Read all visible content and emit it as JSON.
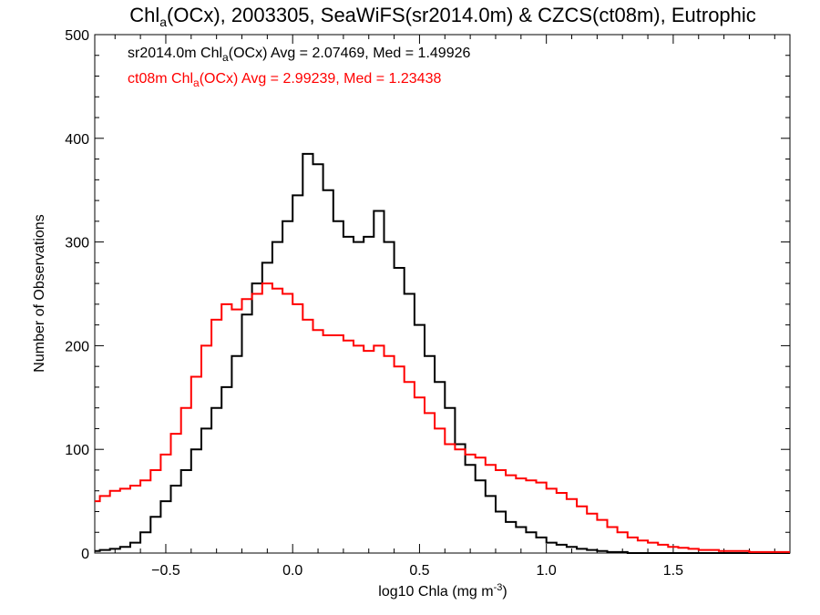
{
  "chart_data": {
    "type": "line",
    "title_prefix": "Chl",
    "title_sub": "a",
    "title_suffix": "(OCx), 2003305, SeaWiFS(sr2014.0m) & CZCS(ct08m), Eutrophic",
    "xlabel_prefix": "log10 Chla (mg m",
    "xlabel_sup": "-3",
    "xlabel_suffix": ")",
    "ylabel": "Number of Observations",
    "xlim": [
      -0.78,
      1.96
    ],
    "ylim": [
      0,
      500
    ],
    "x_ticks": [
      -0.5,
      0.0,
      0.5,
      1.0,
      1.5
    ],
    "x_tick_labels": [
      "−0.5",
      "0.0",
      "0.5",
      "1.0",
      "1.5"
    ],
    "y_ticks": [
      0,
      100,
      200,
      300,
      400,
      500
    ],
    "y_tick_labels": [
      "0",
      "100",
      "200",
      "300",
      "400",
      "500"
    ],
    "grid": false,
    "legend_placement": "top-left",
    "series": [
      {
        "legend_prefix": "sr2014.0m Chl",
        "legend_sub": "a",
        "legend_suffix": "(OCx) Avg = 2.07469, Med = 1.49926",
        "color": "#000000",
        "x": [
          -0.78,
          -0.74,
          -0.7,
          -0.66,
          -0.62,
          -0.58,
          -0.54,
          -0.5,
          -0.46,
          -0.42,
          -0.38,
          -0.34,
          -0.3,
          -0.26,
          -0.22,
          -0.18,
          -0.14,
          -0.1,
          -0.06,
          -0.02,
          0.02,
          0.06,
          0.1,
          0.14,
          0.18,
          0.22,
          0.26,
          0.3,
          0.34,
          0.38,
          0.42,
          0.46,
          0.5,
          0.54,
          0.58,
          0.62,
          0.66,
          0.7,
          0.74,
          0.78,
          0.82,
          0.86,
          0.9,
          0.94,
          0.98,
          1.02,
          1.06,
          1.1,
          1.14,
          1.18,
          1.22,
          1.26,
          1.3,
          1.34,
          1.38,
          1.42,
          1.46,
          1.5,
          1.54,
          1.58,
          1.62,
          1.66,
          1.7,
          1.74,
          1.78,
          1.82,
          1.86,
          1.9,
          1.94
        ],
        "values": [
          2,
          3,
          4,
          6,
          10,
          20,
          35,
          50,
          65,
          80,
          100,
          120,
          140,
          160,
          190,
          230,
          260,
          280,
          300,
          320,
          345,
          385,
          375,
          350,
          320,
          305,
          300,
          305,
          330,
          300,
          275,
          250,
          220,
          190,
          165,
          140,
          105,
          85,
          70,
          55,
          40,
          30,
          25,
          20,
          15,
          10,
          8,
          6,
          4,
          3,
          2,
          1,
          1,
          0,
          0,
          0,
          0,
          0,
          0,
          0,
          0,
          0,
          0,
          0,
          0,
          0,
          0,
          0,
          0
        ]
      },
      {
        "legend_prefix": "ct08m Chl",
        "legend_sub": "a",
        "legend_suffix": "(OCx) Avg = 2.99239, Med = 1.23438",
        "color": "#ff0000",
        "x": [
          -0.78,
          -0.74,
          -0.7,
          -0.66,
          -0.62,
          -0.58,
          -0.54,
          -0.5,
          -0.46,
          -0.42,
          -0.38,
          -0.34,
          -0.3,
          -0.26,
          -0.22,
          -0.18,
          -0.14,
          -0.1,
          -0.06,
          -0.02,
          0.02,
          0.06,
          0.1,
          0.14,
          0.18,
          0.22,
          0.26,
          0.3,
          0.34,
          0.38,
          0.42,
          0.46,
          0.5,
          0.54,
          0.58,
          0.62,
          0.66,
          0.7,
          0.74,
          0.78,
          0.82,
          0.86,
          0.9,
          0.94,
          0.98,
          1.02,
          1.06,
          1.1,
          1.14,
          1.18,
          1.22,
          1.26,
          1.3,
          1.34,
          1.38,
          1.42,
          1.46,
          1.5,
          1.54,
          1.58,
          1.62,
          1.66,
          1.7,
          1.74,
          1.78,
          1.82,
          1.86,
          1.9,
          1.94
        ],
        "values": [
          50,
          55,
          60,
          62,
          65,
          70,
          80,
          95,
          115,
          140,
          170,
          200,
          225,
          240,
          235,
          245,
          250,
          260,
          255,
          250,
          240,
          225,
          215,
          210,
          210,
          205,
          200,
          195,
          200,
          190,
          180,
          165,
          150,
          135,
          120,
          105,
          100,
          95,
          92,
          85,
          80,
          75,
          72,
          70,
          68,
          62,
          58,
          52,
          45,
          38,
          32,
          25,
          20,
          15,
          12,
          10,
          8,
          6,
          5,
          4,
          3,
          3,
          2,
          2,
          2,
          1,
          1,
          1,
          1
        ]
      }
    ]
  }
}
